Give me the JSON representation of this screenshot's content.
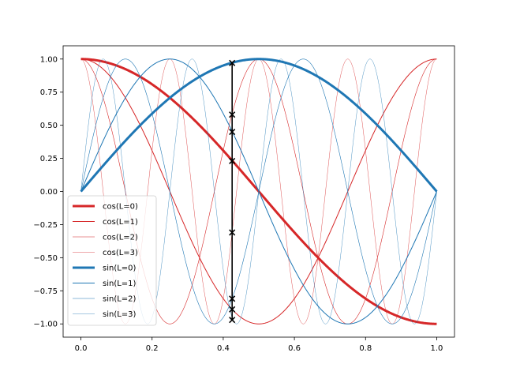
{
  "chart_data": {
    "type": "line",
    "title": "",
    "xlabel": "",
    "ylabel": "",
    "xlim": [
      -0.05,
      1.05
    ],
    "ylim": [
      -1.1,
      1.1
    ],
    "x_ticks": [
      0.0,
      0.2,
      0.4,
      0.6,
      0.8,
      1.0
    ],
    "x_tick_labels": [
      "0.0",
      "0.2",
      "0.4",
      "0.6",
      "0.8",
      "1.0"
    ],
    "y_ticks": [
      1.0,
      0.75,
      0.5,
      0.25,
      0.0,
      -0.25,
      -0.5,
      -0.75,
      -1.0
    ],
    "y_tick_labels": [
      "1.00",
      "0.75",
      "0.50",
      "0.25",
      "0.00",
      "−0.25",
      "−0.50",
      "−0.75",
      "−1.00"
    ],
    "grid": false,
    "legend_position": "lower-left",
    "colors": {
      "cos": "#d62728",
      "sin": "#1f77b4",
      "marker": "#000000"
    },
    "series": [
      {
        "name": "cos(L=0)",
        "func": "cos",
        "level": 0,
        "linewidth": 3
      },
      {
        "name": "cos(L=1)",
        "func": "cos",
        "level": 1,
        "linewidth": 1
      },
      {
        "name": "cos(L=2)",
        "func": "cos",
        "level": 2,
        "linewidth": 0.6
      },
      {
        "name": "cos(L=3)",
        "func": "cos",
        "level": 3,
        "linewidth": 0.4
      },
      {
        "name": "sin(L=0)",
        "func": "sin",
        "level": 0,
        "linewidth": 3
      },
      {
        "name": "sin(L=1)",
        "func": "sin",
        "level": 1,
        "linewidth": 1
      },
      {
        "name": "sin(L=2)",
        "func": "sin",
        "level": 2,
        "linewidth": 0.6
      },
      {
        "name": "sin(L=3)",
        "func": "sin",
        "level": 3,
        "linewidth": 0.4
      }
    ],
    "vertical_line": {
      "x": 0.425,
      "y_range": [
        -0.97,
        0.97
      ]
    },
    "markers": [
      {
        "x": 0.425,
        "y": 0.97
      },
      {
        "x": 0.425,
        "y": 0.58
      },
      {
        "x": 0.425,
        "y": 0.45
      },
      {
        "x": 0.425,
        "y": 0.23
      },
      {
        "x": 0.425,
        "y": -0.31
      },
      {
        "x": 0.425,
        "y": -0.81
      },
      {
        "x": 0.425,
        "y": -0.89
      },
      {
        "x": 0.425,
        "y": -0.97
      }
    ]
  }
}
